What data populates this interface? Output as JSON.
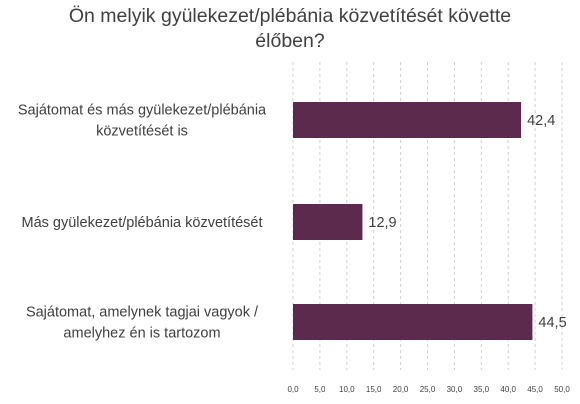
{
  "chart_data": {
    "type": "bar",
    "orientation": "horizontal",
    "title_lines": [
      "Ön melyik gyülekezet/plébánia közvetítését követte",
      "élőben?"
    ],
    "categories": [
      [
        "Sajátomat és más gyülekezet/plébánia",
        "közvetítését is"
      ],
      [
        "Más gyülekezet/plébánia közvetítését"
      ],
      [
        "Sajátomat, amelynek  tagjai vagyok /",
        "amelyhez én is tartozom"
      ]
    ],
    "values": [
      42.4,
      12.9,
      44.5
    ],
    "value_labels": [
      "42,4",
      "12,9",
      "44,5"
    ],
    "xlim": [
      0,
      50
    ],
    "xticks": [
      "0,0",
      "5,0",
      "10,0",
      "15,0",
      "20,0",
      "25,0",
      "30,0",
      "35,0",
      "40,0",
      "45,0",
      "50,0"
    ],
    "grid": "vertical dashed",
    "legend": "none",
    "bar_color": "#5b2a4d",
    "grid_color": "#d0d0d0"
  }
}
